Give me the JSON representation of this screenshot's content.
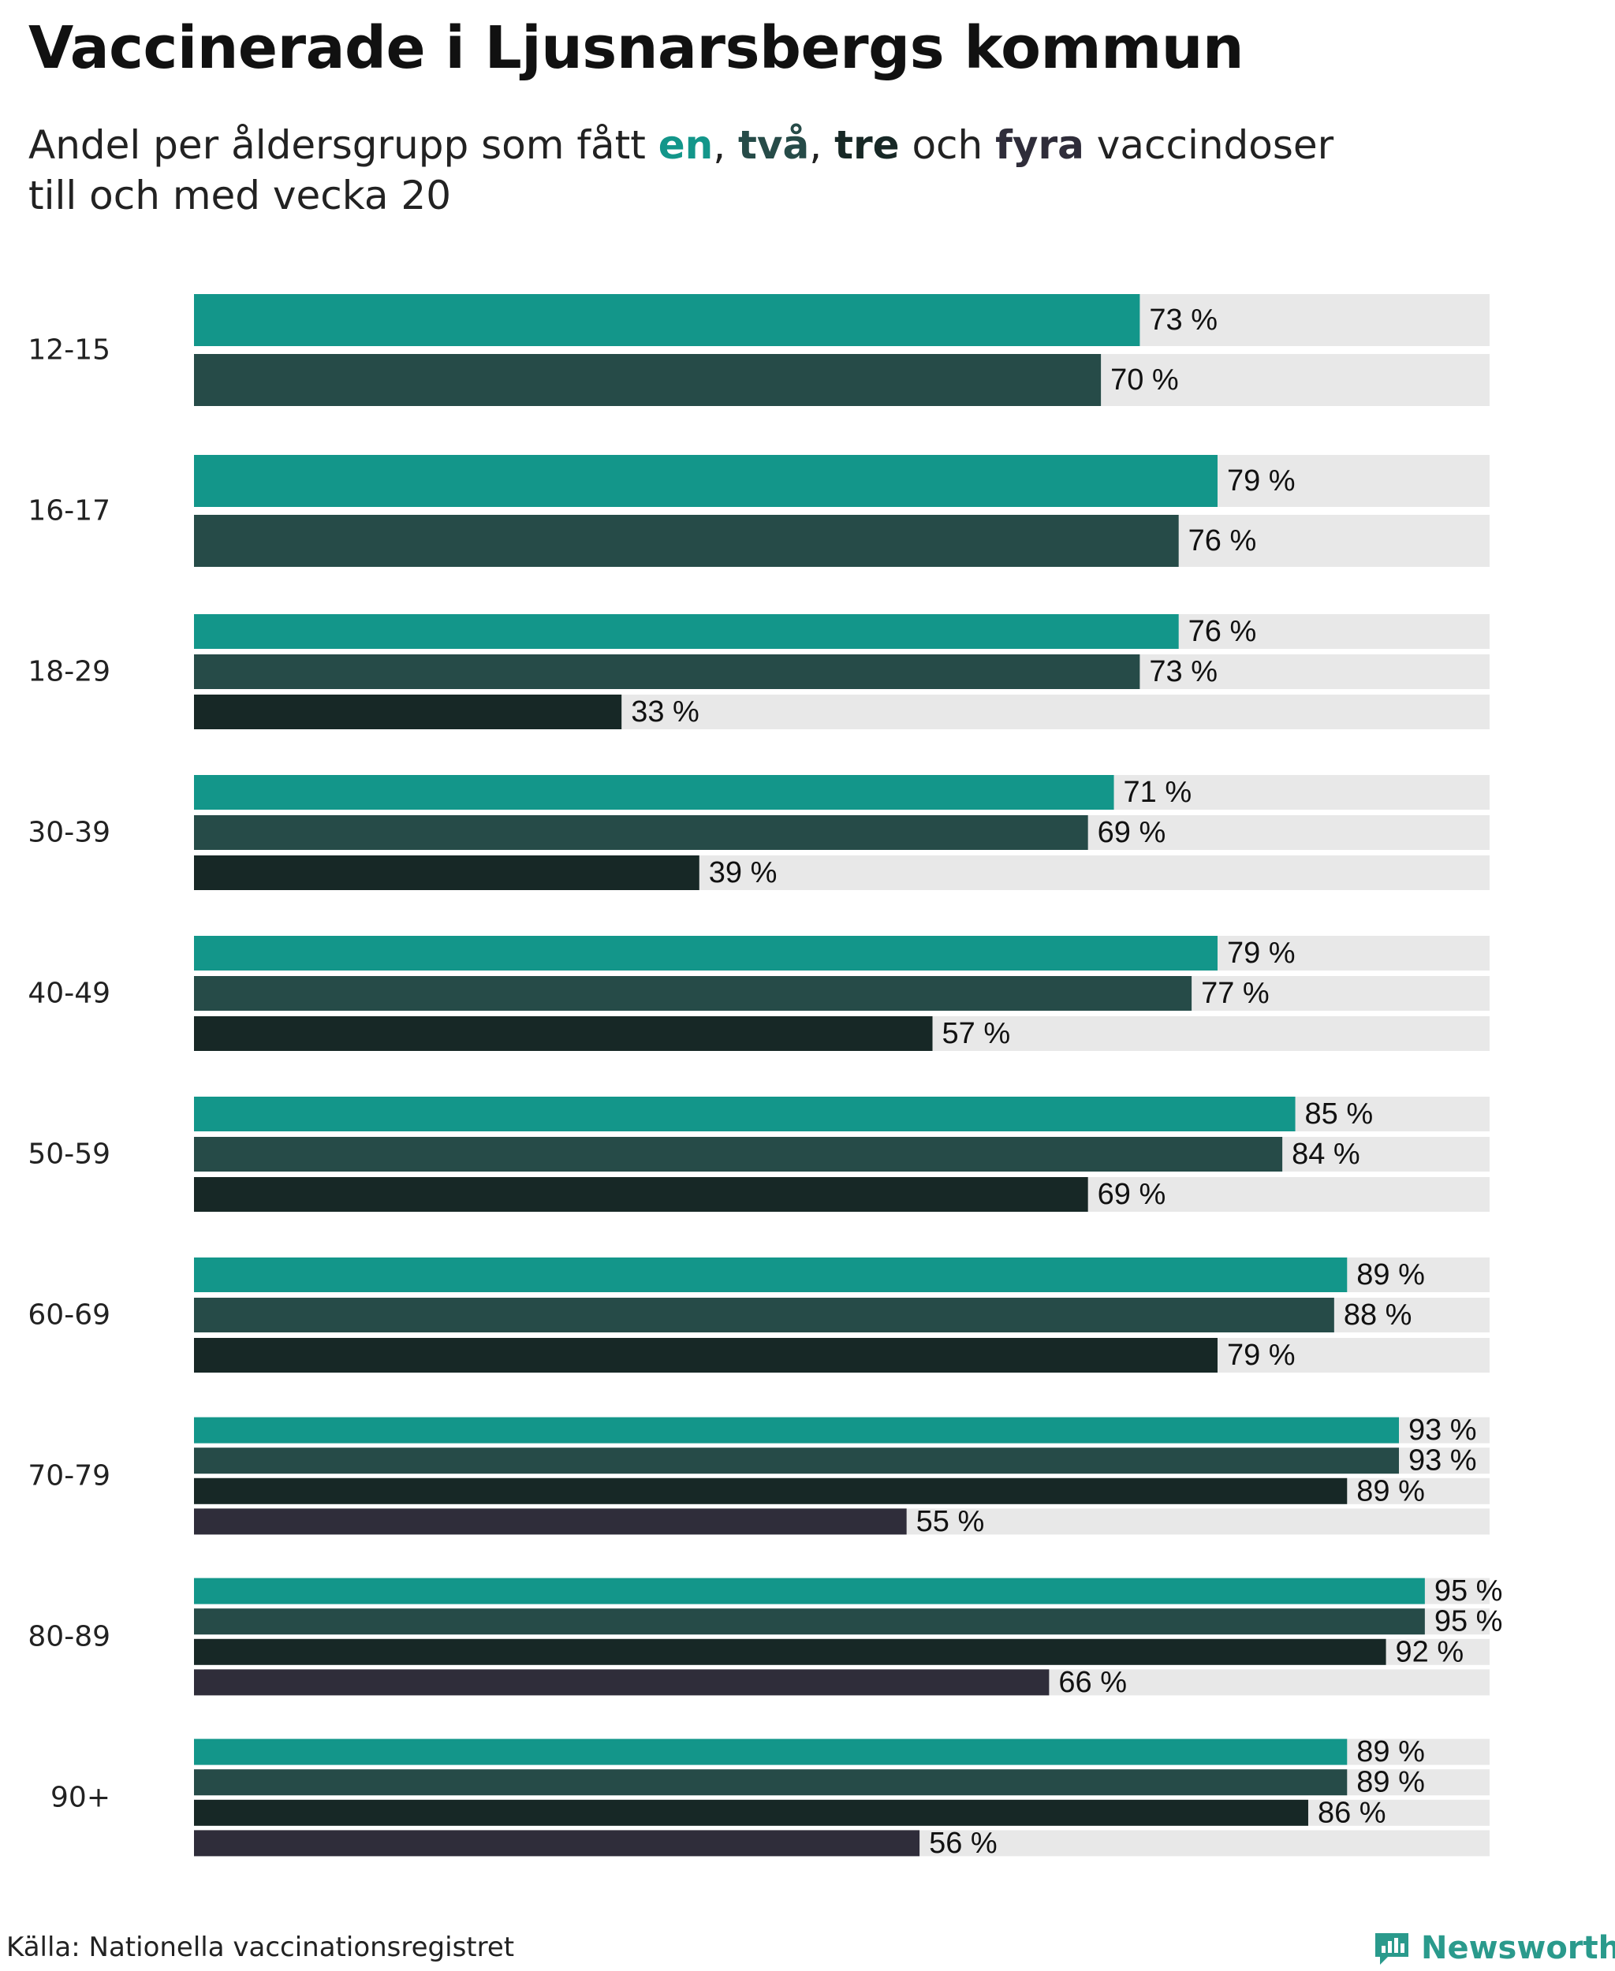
{
  "title": "Vaccinerade i Ljusnarsbergs kommun",
  "subtitle": {
    "part1": "Andel per åldersgrupp som fått ",
    "en": "en",
    "sep1": ", ",
    "tva": "två",
    "sep2": ", ",
    "tre": "tre",
    "och": " och ",
    "fyra": "fyra",
    "part2": " vaccindoser",
    "line2": "till och med vecka 20"
  },
  "colors": {
    "en": "#13968a",
    "tva": "#264b48",
    "tre": "#172826",
    "fyra": "#2f2d3a",
    "track": "#e8e8e8"
  },
  "source": "Källa: Nationella vaccinationsregistret",
  "brand": {
    "name": "Newsworthy",
    "icon": "newsworthy-logo-icon"
  },
  "chart_data": {
    "type": "bar",
    "orientation": "horizontal",
    "xlim": [
      0,
      100
    ],
    "value_suffix": " %",
    "grid": false,
    "series": [
      {
        "name": "en",
        "color": "#13968a"
      },
      {
        "name": "två",
        "color": "#264b48"
      },
      {
        "name": "tre",
        "color": "#172826"
      },
      {
        "name": "fyra",
        "color": "#2f2d3a"
      }
    ],
    "groups": [
      {
        "label": "12-15",
        "values": [
          73,
          70
        ]
      },
      {
        "label": "16-17",
        "values": [
          79,
          76
        ]
      },
      {
        "label": "18-29",
        "values": [
          76,
          73,
          33
        ]
      },
      {
        "label": "30-39",
        "values": [
          71,
          69,
          39
        ]
      },
      {
        "label": "40-49",
        "values": [
          79,
          77,
          57
        ]
      },
      {
        "label": "50-59",
        "values": [
          85,
          84,
          69
        ]
      },
      {
        "label": "60-69",
        "values": [
          89,
          88,
          79
        ]
      },
      {
        "label": "70-79",
        "values": [
          93,
          93,
          89,
          55
        ]
      },
      {
        "label": "80-89",
        "values": [
          95,
          95,
          92,
          66
        ]
      },
      {
        "label": "90+",
        "values": [
          89,
          89,
          86,
          56
        ]
      }
    ]
  }
}
